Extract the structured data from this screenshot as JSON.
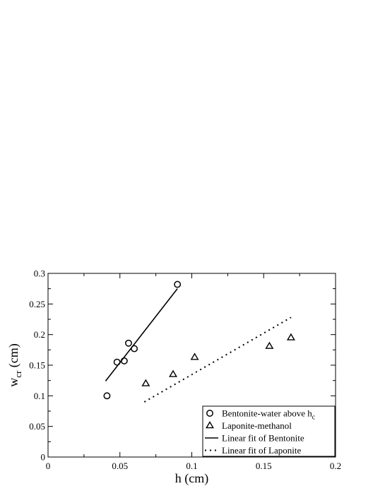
{
  "chart_data": {
    "type": "scatter",
    "xlabel": "h (cm)",
    "ylabel": {
      "main": "w",
      "sub": "cr",
      "unit": " (cm)"
    },
    "xlim": [
      0,
      0.2
    ],
    "ylim": [
      0,
      0.3
    ],
    "x_ticks": [
      "0",
      "0.05",
      "0.1",
      "0.15",
      "0.2"
    ],
    "y_ticks": [
      "0",
      "0.05",
      "0.1",
      "0.15",
      "0.2",
      "0.25",
      "0.3"
    ],
    "series": [
      {
        "name": "Bentonite-water above h",
        "name_sub": "c",
        "marker": "circle",
        "points": [
          {
            "x": 0.041,
            "y": 0.1
          },
          {
            "x": 0.048,
            "y": 0.155
          },
          {
            "x": 0.053,
            "y": 0.157
          },
          {
            "x": 0.056,
            "y": 0.186
          },
          {
            "x": 0.06,
            "y": 0.177
          },
          {
            "x": 0.09,
            "y": 0.282
          }
        ]
      },
      {
        "name": "Laponite-methanol",
        "marker": "triangle",
        "points": [
          {
            "x": 0.068,
            "y": 0.12
          },
          {
            "x": 0.087,
            "y": 0.135
          },
          {
            "x": 0.102,
            "y": 0.163
          },
          {
            "x": 0.154,
            "y": 0.181
          },
          {
            "x": 0.169,
            "y": 0.195
          }
        ]
      },
      {
        "name": "Linear fit of Bentonite",
        "style": "solid",
        "points": [
          {
            "x": 0.04,
            "y": 0.124
          },
          {
            "x": 0.09,
            "y": 0.275
          }
        ]
      },
      {
        "name": "Linear fit of Laponite",
        "style": "dotted",
        "points": [
          {
            "x": 0.067,
            "y": 0.09
          },
          {
            "x": 0.169,
            "y": 0.228
          }
        ]
      }
    ],
    "legend_position": "bottom-right",
    "grid": false
  }
}
